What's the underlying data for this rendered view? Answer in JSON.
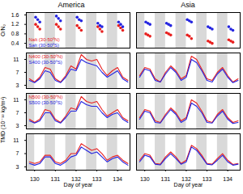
{
  "chart_data": [
    {
      "type": "scatter",
      "title": "America",
      "ylabel": "O/N₂",
      "legend": "bottom-left",
      "tick_labels": "y",
      "x": [
        130.05,
        130.15,
        130.25,
        131.05,
        131.15,
        131.25,
        132.05,
        132.15,
        132.25,
        133.05,
        133.15,
        133.25,
        134.05,
        134.15,
        134.25
      ],
      "series": [
        {
          "name": "Nalt (30-50ºN)",
          "color": "#e8201f",
          "marker": "circle",
          "values": [
            1.2,
            1.1,
            1.0,
            1.2,
            1.1,
            1.0,
            1.15,
            1.05,
            0.95,
            1.1,
            1.0,
            0.9,
            1.15,
            1.05,
            0.95
          ]
        },
        {
          "name": "Salt (30-50ºS)",
          "color": "#2424e0",
          "marker": "circle",
          "values": [
            1.5,
            1.4,
            1.3,
            1.55,
            1.45,
            1.35,
            1.5,
            1.4,
            1.35,
            1.25,
            1.15,
            1.1,
            1.3,
            1.2,
            1.1
          ]
        }
      ],
      "xlim": [
        129.6,
        134.6
      ],
      "xticks": [
        130,
        131,
        132,
        133,
        134
      ],
      "ylim": [
        0.2,
        1.7
      ],
      "yticks": [
        0.4,
        0.8,
        1.2,
        1.6
      ],
      "shaded": [
        [
          129.6,
          130.0
        ],
        [
          130.5,
          131.0
        ],
        [
          131.5,
          132.0
        ],
        [
          132.5,
          133.0
        ],
        [
          133.5,
          134.0
        ]
      ]
    },
    {
      "type": "scatter",
      "title": "Asia",
      "tick_labels": false,
      "x": [
        130.05,
        130.15,
        130.25,
        131.05,
        131.15,
        131.25,
        132.05,
        132.15,
        132.25,
        133.05,
        133.15,
        133.25,
        134.05,
        134.15,
        134.25
      ],
      "series": [
        {
          "color": "#e8201f",
          "marker": "circle",
          "values": [
            0.8,
            0.75,
            0.7,
            0.85,
            0.8,
            0.75,
            0.75,
            0.7,
            0.6,
            0.5,
            0.45,
            0.4,
            0.55,
            0.5,
            0.45
          ]
        },
        {
          "color": "#2424e0",
          "marker": "circle",
          "values": [
            1.3,
            1.25,
            1.2,
            1.25,
            1.2,
            1.15,
            1.4,
            1.35,
            1.3,
            1.1,
            1.05,
            1.0,
            1.1,
            1.0,
            0.95
          ]
        }
      ],
      "xlim": [
        129.6,
        134.6
      ],
      "xticks": [
        130,
        131,
        132,
        133,
        134
      ],
      "ylim": [
        0.2,
        1.7
      ],
      "yticks": [
        0.4,
        0.8,
        1.2,
        1.6
      ],
      "shaded": [
        [
          129.6,
          130.0
        ],
        [
          130.5,
          131.0
        ],
        [
          131.5,
          132.0
        ],
        [
          132.5,
          133.0
        ],
        [
          133.5,
          134.0
        ]
      ]
    },
    {
      "type": "line",
      "legend": "top-left",
      "tick_labels": "y",
      "x": [
        129.75,
        130,
        130.25,
        130.5,
        130.75,
        131,
        131.25,
        131.5,
        131.75,
        132,
        132.25,
        132.5,
        132.75,
        133,
        133.25,
        133.5,
        133.75,
        134,
        134.25,
        134.5
      ],
      "series": [
        {
          "name": "N400 (30-50ºN)",
          "color": "#e8201f",
          "values": [
            5,
            4,
            5.5,
            8.5,
            8,
            5,
            4,
            6,
            9,
            8,
            12.5,
            11,
            10.5,
            11,
            8,
            6,
            7.5,
            8.5,
            5.5,
            4.5
          ]
        },
        {
          "name": "S400 (30-50ºS)",
          "color": "#2424e0",
          "values": [
            4.5,
            3.8,
            5,
            7.5,
            7,
            4.5,
            3.8,
            5.5,
            8,
            7.5,
            11,
            10,
            9.5,
            9,
            7,
            5.5,
            6.5,
            7.5,
            5,
            4
          ]
        }
      ],
      "xlim": [
        129.6,
        134.6
      ],
      "xticks": [
        130,
        131,
        132,
        133,
        134
      ],
      "ylim": [
        2,
        13
      ],
      "yticks": [
        3,
        7,
        11
      ],
      "shaded": [
        [
          129.6,
          130.0
        ],
        [
          130.5,
          131.0
        ],
        [
          131.5,
          132.0
        ],
        [
          132.5,
          133.0
        ],
        [
          133.5,
          134.0
        ]
      ]
    },
    {
      "type": "line",
      "tick_labels": false,
      "x": [
        129.75,
        130,
        130.25,
        130.5,
        130.75,
        131,
        131.25,
        131.5,
        131.75,
        132,
        132.25,
        132.5,
        132.75,
        133,
        133.25,
        133.5,
        133.75,
        134,
        134.25,
        134.5
      ],
      "series": [
        {
          "color": "#e8201f",
          "values": [
            6,
            8.5,
            8,
            5,
            4,
            7,
            9,
            7.5,
            5,
            6,
            12,
            11,
            8,
            5,
            4.5,
            7,
            8.5,
            6,
            4,
            5
          ]
        },
        {
          "color": "#2424e0",
          "values": [
            5.5,
            8,
            7.5,
            4.5,
            4,
            6.5,
            8.5,
            7,
            4.5,
            5.5,
            11,
            10,
            7.5,
            4.5,
            4,
            6.5,
            8,
            5.5,
            3.8,
            4.5
          ]
        }
      ],
      "xlim": [
        129.6,
        134.6
      ],
      "xticks": [
        130,
        131,
        132,
        133,
        134
      ],
      "ylim": [
        2,
        13
      ],
      "yticks": [
        3,
        7,
        11
      ],
      "shaded": [
        [
          129.6,
          130.0
        ],
        [
          130.5,
          131.0
        ],
        [
          131.5,
          132.0
        ],
        [
          132.5,
          133.0
        ],
        [
          133.5,
          134.0
        ]
      ]
    },
    {
      "type": "line",
      "ylabel": "TMD (10⁻¹² kg/m³)",
      "legend": "top-left",
      "tick_labels": "y",
      "x": [
        129.75,
        130,
        130.25,
        130.5,
        130.75,
        131,
        131.25,
        131.5,
        131.75,
        132,
        132.25,
        132.5,
        132.75,
        133,
        133.25,
        133.5,
        133.75,
        134,
        134.25,
        134.5
      ],
      "series": [
        {
          "name": "N500 (30-50ºN)",
          "color": "#e8201f",
          "values": [
            5,
            4,
            5,
            8,
            7.5,
            5,
            4,
            6,
            8.5,
            8,
            12,
            10.5,
            10,
            10.5,
            8,
            6,
            7,
            8,
            5.5,
            4.5
          ]
        },
        {
          "name": "S500 (30-50ºS)",
          "color": "#2424e0",
          "values": [
            4.5,
            3.8,
            4.5,
            7,
            7,
            4.5,
            3.8,
            5.5,
            7.5,
            7.5,
            10.5,
            9.5,
            9,
            9,
            7,
            5.5,
            6.5,
            7,
            5,
            4
          ]
        }
      ],
      "xlim": [
        129.6,
        134.6
      ],
      "xticks": [
        130,
        131,
        132,
        133,
        134
      ],
      "ylim": [
        2,
        13
      ],
      "yticks": [
        3,
        7,
        11
      ],
      "shaded": [
        [
          129.6,
          130.0
        ],
        [
          130.5,
          131.0
        ],
        [
          131.5,
          132.0
        ],
        [
          132.5,
          133.0
        ],
        [
          133.5,
          134.0
        ]
      ]
    },
    {
      "type": "line",
      "tick_labels": false,
      "x": [
        129.75,
        130,
        130.25,
        130.5,
        130.75,
        131,
        131.25,
        131.5,
        131.75,
        132,
        132.25,
        132.5,
        132.75,
        133,
        133.25,
        133.5,
        133.75,
        134,
        134.25,
        134.5
      ],
      "series": [
        {
          "color": "#e8201f",
          "values": [
            5.5,
            8,
            7.5,
            4.5,
            4,
            6.5,
            8.5,
            7,
            4.5,
            5.5,
            11,
            10,
            7.5,
            4.5,
            4,
            6.5,
            8,
            5.5,
            4,
            4.5
          ]
        },
        {
          "color": "#2424e0",
          "values": [
            5,
            7.5,
            7,
            4,
            3.8,
            6,
            8,
            6.5,
            4,
            5,
            10,
            9,
            7,
            4,
            3.8,
            6,
            7.5,
            5,
            3.7,
            4
          ]
        }
      ],
      "xlim": [
        129.6,
        134.6
      ],
      "xticks": [
        130,
        131,
        132,
        133,
        134
      ],
      "ylim": [
        2,
        13
      ],
      "yticks": [
        3,
        7,
        11
      ],
      "shaded": [
        [
          129.6,
          130.0
        ],
        [
          130.5,
          131.0
        ],
        [
          131.5,
          132.0
        ],
        [
          132.5,
          133.0
        ],
        [
          133.5,
          134.0
        ]
      ]
    },
    {
      "type": "line",
      "xlabel": "Day of year",
      "x": [
        129.75,
        130,
        130.25,
        130.5,
        130.75,
        131,
        131.25,
        131.5,
        131.75,
        132,
        132.25,
        132.5,
        132.75,
        133,
        133.25,
        133.5,
        133.75,
        134,
        134.25,
        134.5
      ],
      "series": [
        {
          "color": "#e8201f",
          "values": [
            4.5,
            4,
            4.5,
            6.5,
            6.5,
            4.5,
            4,
            5,
            7,
            7,
            10,
            9,
            8,
            8.5,
            7,
            5,
            6,
            6.5,
            5,
            4
          ]
        },
        {
          "color": "#2424e0",
          "values": [
            4,
            3.5,
            4,
            6,
            6,
            4,
            3.5,
            4.5,
            6,
            6.5,
            9,
            8,
            7,
            7.5,
            6,
            4.5,
            5.5,
            6,
            4.5,
            3.5
          ]
        }
      ],
      "xlim": [
        129.6,
        134.6
      ],
      "xticks": [
        130,
        131,
        132,
        133,
        134
      ],
      "ylim": [
        2,
        13
      ],
      "yticks": [
        3,
        7,
        11
      ],
      "shaded": [
        [
          129.6,
          130.0
        ],
        [
          130.5,
          131.0
        ],
        [
          131.5,
          132.0
        ],
        [
          132.5,
          133.0
        ],
        [
          133.5,
          134.0
        ]
      ]
    },
    {
      "type": "line",
      "xlabel": "Day of year",
      "tick_labels": "x",
      "x": [
        129.75,
        130,
        130.25,
        130.5,
        130.75,
        131,
        131.25,
        131.5,
        131.75,
        132,
        132.25,
        132.5,
        132.75,
        133,
        133.25,
        133.5,
        133.75,
        134,
        134.25,
        134.5
      ],
      "series": [
        {
          "color": "#e8201f",
          "values": [
            5,
            7,
            6.5,
            4,
            3.8,
            6,
            7.5,
            6,
            4,
            5,
            9.5,
            8.5,
            6.5,
            4,
            3.8,
            5.5,
            7,
            5,
            3.7,
            4
          ]
        },
        {
          "color": "#2424e0",
          "values": [
            4.5,
            6.5,
            6,
            3.8,
            3.6,
            5.5,
            7,
            5.5,
            3.8,
            4.5,
            9,
            8,
            6,
            3.8,
            3.6,
            5,
            6.5,
            4.5,
            3.5,
            3.8
          ]
        }
      ],
      "xlim": [
        129.6,
        134.6
      ],
      "xticks": [
        130,
        131,
        132,
        133,
        134
      ],
      "ylim": [
        2,
        13
      ],
      "yticks": [
        3,
        7,
        11
      ],
      "shaded": [
        [
          129.6,
          130.0
        ],
        [
          130.5,
          131.0
        ],
        [
          131.5,
          132.0
        ],
        [
          132.5,
          133.0
        ],
        [
          133.5,
          134.0
        ]
      ]
    }
  ]
}
